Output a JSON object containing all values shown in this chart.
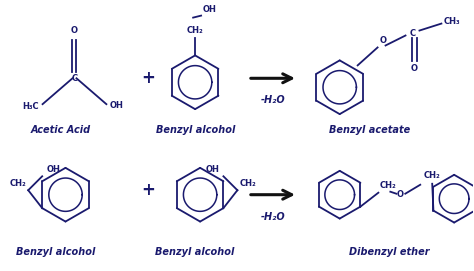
{
  "background_color": "#ffffff",
  "text_color": "#1a1a6e",
  "arrow_color": "#111111",
  "line_color": "#1a1a6e",
  "top_reaction": {
    "label1": "Acetic Acid",
    "label2": "Benzyl alcohol",
    "label3": "Benzyl acetate",
    "arrow_label": "-H₂O"
  },
  "bottom_reaction": {
    "label1": "Benzyl alcohol",
    "label2": "Benzyl alcohol",
    "label3": "Dibenzyl ether",
    "arrow_label": "-H₂O"
  },
  "plus_sign": "+",
  "figsize": [
    4.74,
    2.71
  ],
  "dpi": 100
}
